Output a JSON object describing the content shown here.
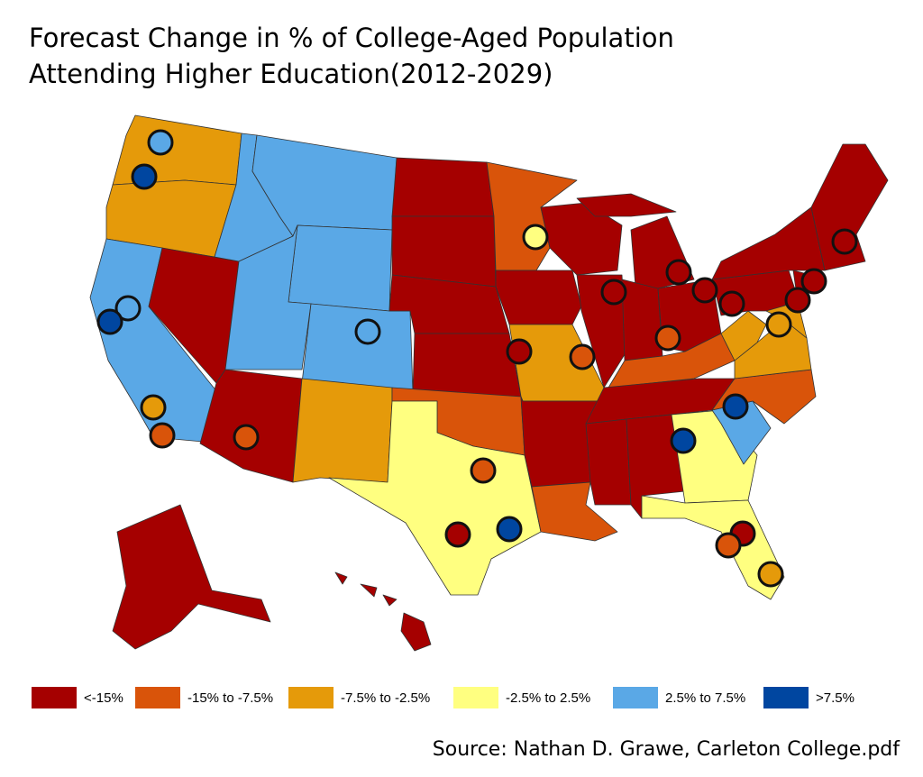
{
  "title": [
    "Forecast Change in % of College-Aged Population",
    "Attending Higher Education(2012-2029)"
  ],
  "legend": [
    {
      "label": "<-15%",
      "color": "#a50000"
    },
    {
      "label": "-15% to -7.5%",
      "color": "#d9540a"
    },
    {
      "label": "-7.5% to -2.5%",
      "color": "#e59a0a"
    },
    {
      "label": "-2.5% to 2.5%",
      "color": "#ffff80"
    },
    {
      "label": "2.5% to 7.5%",
      "color": "#5aa8e6"
    },
    {
      "label": ">7.5%",
      "color": "#0046a0"
    }
  ],
  "source": "Source: Nathan D. Grawe, Carleton College.pdf"
}
